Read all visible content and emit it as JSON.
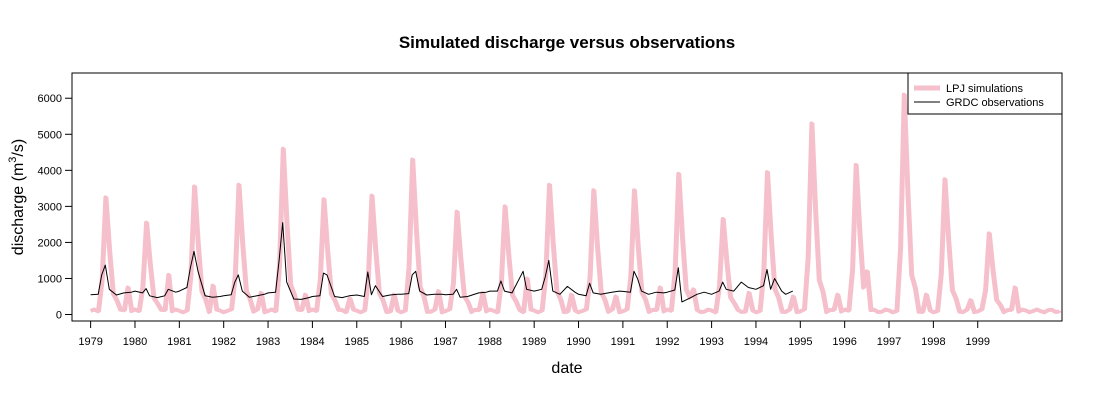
{
  "chart_data": {
    "type": "line",
    "title": "Simulated discharge versus observations",
    "xlabel": "date",
    "ylabel": "discharge (m3/s)",
    "ylabel_parts": {
      "before": "discharge (m",
      "superscript": "3",
      "after": "/s)"
    },
    "x_tick_labels": [
      "1979",
      "1980",
      "1981",
      "1982",
      "1983",
      "1984",
      "1985",
      "1986",
      "1987",
      "1988",
      "1989",
      "1990",
      "1991",
      "1992",
      "1993",
      "1994",
      "1995",
      "1996",
      "1997",
      "1998",
      "1999"
    ],
    "y_tick_labels": [
      "0",
      "1000",
      "2000",
      "3000",
      "4000",
      "5000",
      "6000"
    ],
    "xlim": [
      1978.58,
      2000.9
    ],
    "ylim": [
      -180,
      6700
    ],
    "grid": false,
    "legend_position": "top-right",
    "legend": [
      "LPJ simulations",
      "GRDC observations"
    ],
    "series": [
      {
        "name": "LPJ simulations",
        "color": "#f5c0cb",
        "style": "thick band",
        "peaks": [
          {
            "t": 1979.33,
            "v": 3250
          },
          {
            "t": 1980.25,
            "v": 2550
          },
          {
            "t": 1981.33,
            "v": 3550
          },
          {
            "t": 1982.33,
            "v": 3600
          },
          {
            "t": 1983.33,
            "v": 4600
          },
          {
            "t": 1984.25,
            "v": 3200
          },
          {
            "t": 1985.33,
            "v": 3300
          },
          {
            "t": 1986.25,
            "v": 4300
          },
          {
            "t": 1987.25,
            "v": 2850
          },
          {
            "t": 1988.33,
            "v": 3000
          },
          {
            "t": 1989.33,
            "v": 3600
          },
          {
            "t": 1990.33,
            "v": 3450
          },
          {
            "t": 1991.25,
            "v": 3450
          },
          {
            "t": 1992.25,
            "v": 3900
          },
          {
            "t": 1993.25,
            "v": 2650
          },
          {
            "t": 1994.25,
            "v": 3950
          },
          {
            "t": 1995.25,
            "v": 5300
          },
          {
            "t": 1996.25,
            "v": 4150
          },
          {
            "t": 1997.33,
            "v": 6100
          },
          {
            "t": 1998.25,
            "v": 3750
          },
          {
            "t": 1999.25,
            "v": 2250
          }
        ],
        "secondary_peaks": [
          {
            "t": 1979.85,
            "v": 750
          },
          {
            "t": 1980.75,
            "v": 1100
          },
          {
            "t": 1981.75,
            "v": 800
          },
          {
            "t": 1982.8,
            "v": 600
          },
          {
            "t": 1983.8,
            "v": 550
          },
          {
            "t": 1984.8,
            "v": 450
          },
          {
            "t": 1985.8,
            "v": 550
          },
          {
            "t": 1986.8,
            "v": 650
          },
          {
            "t": 1987.8,
            "v": 600
          },
          {
            "t": 1988.8,
            "v": 1000
          },
          {
            "t": 1989.8,
            "v": 550
          },
          {
            "t": 1990.8,
            "v": 500
          },
          {
            "t": 1991.8,
            "v": 750
          },
          {
            "t": 1992.6,
            "v": 700
          },
          {
            "t": 1993.8,
            "v": 600
          },
          {
            "t": 1994.8,
            "v": 500
          },
          {
            "t": 1995.8,
            "v": 550
          },
          {
            "t": 1996.5,
            "v": 1200
          },
          {
            "t": 1997.8,
            "v": 550
          },
          {
            "t": 1998.8,
            "v": 400
          },
          {
            "t": 1999.8,
            "v": 750
          }
        ],
        "base": 100,
        "end": 2000.85
      },
      {
        "name": "GRDC observations",
        "color": "#000000",
        "style": "thin line",
        "points": [
          [
            1979.0,
            550
          ],
          [
            1979.17,
            560
          ],
          [
            1979.25,
            1100
          ],
          [
            1979.33,
            1370
          ],
          [
            1979.42,
            700
          ],
          [
            1979.58,
            540
          ],
          [
            1979.75,
            600
          ],
          [
            1979.92,
            620
          ],
          [
            1980.0,
            650
          ],
          [
            1980.17,
            600
          ],
          [
            1980.25,
            720
          ],
          [
            1980.33,
            520
          ],
          [
            1980.5,
            470
          ],
          [
            1980.67,
            520
          ],
          [
            1980.75,
            700
          ],
          [
            1980.92,
            620
          ],
          [
            1981.0,
            650
          ],
          [
            1981.17,
            750
          ],
          [
            1981.25,
            1300
          ],
          [
            1981.33,
            1750
          ],
          [
            1981.42,
            1200
          ],
          [
            1981.58,
            520
          ],
          [
            1981.75,
            480
          ],
          [
            1981.92,
            500
          ],
          [
            1982.0,
            520
          ],
          [
            1982.17,
            550
          ],
          [
            1982.25,
            900
          ],
          [
            1982.33,
            1100
          ],
          [
            1982.42,
            650
          ],
          [
            1982.58,
            480
          ],
          [
            1982.75,
            520
          ],
          [
            1982.92,
            560
          ],
          [
            1983.0,
            600
          ],
          [
            1983.17,
            620
          ],
          [
            1983.25,
            1500
          ],
          [
            1983.33,
            2550
          ],
          [
            1983.42,
            900
          ],
          [
            1983.58,
            430
          ],
          [
            1983.75,
            420
          ],
          [
            1983.92,
            470
          ],
          [
            1984.0,
            500
          ],
          [
            1984.17,
            520
          ],
          [
            1984.25,
            1150
          ],
          [
            1984.33,
            1100
          ],
          [
            1984.5,
            500
          ],
          [
            1984.67,
            470
          ],
          [
            1984.83,
            520
          ],
          [
            1985.0,
            540
          ],
          [
            1985.17,
            500
          ],
          [
            1985.25,
            1180
          ],
          [
            1985.33,
            550
          ],
          [
            1985.42,
            800
          ],
          [
            1985.58,
            500
          ],
          [
            1985.75,
            540
          ],
          [
            1985.92,
            560
          ],
          [
            1986.0,
            560
          ],
          [
            1986.17,
            580
          ],
          [
            1986.25,
            1100
          ],
          [
            1986.33,
            1200
          ],
          [
            1986.42,
            650
          ],
          [
            1986.58,
            540
          ],
          [
            1986.75,
            560
          ],
          [
            1986.92,
            560
          ],
          [
            1987.0,
            550
          ],
          [
            1987.17,
            560
          ],
          [
            1987.25,
            700
          ],
          [
            1987.33,
            480
          ],
          [
            1987.5,
            500
          ],
          [
            1987.75,
            600
          ],
          [
            1987.92,
            620
          ],
          [
            1988.0,
            650
          ],
          [
            1988.17,
            650
          ],
          [
            1988.25,
            930
          ],
          [
            1988.33,
            650
          ],
          [
            1988.5,
            600
          ],
          [
            1988.75,
            1200
          ],
          [
            1988.83,
            700
          ],
          [
            1989.0,
            650
          ],
          [
            1989.17,
            700
          ],
          [
            1989.25,
            1050
          ],
          [
            1989.33,
            1500
          ],
          [
            1989.42,
            650
          ],
          [
            1989.58,
            560
          ],
          [
            1989.75,
            780
          ],
          [
            1989.92,
            620
          ],
          [
            1990.0,
            560
          ],
          [
            1990.17,
            520
          ],
          [
            1990.25,
            870
          ],
          [
            1990.33,
            600
          ],
          [
            1990.5,
            560
          ],
          [
            1990.75,
            620
          ],
          [
            1990.92,
            650
          ],
          [
            1991.0,
            640
          ],
          [
            1991.17,
            620
          ],
          [
            1991.25,
            1200
          ],
          [
            1991.33,
            1000
          ],
          [
            1991.42,
            650
          ],
          [
            1991.58,
            560
          ],
          [
            1991.75,
            620
          ],
          [
            1991.92,
            600
          ],
          [
            1992.0,
            620
          ],
          [
            1992.17,
            680
          ],
          [
            1992.25,
            1300
          ],
          [
            1992.33,
            350
          ],
          [
            1992.5,
            450
          ],
          [
            1992.67,
            560
          ],
          [
            1992.83,
            620
          ],
          [
            1993.0,
            560
          ],
          [
            1993.17,
            650
          ],
          [
            1993.25,
            900
          ],
          [
            1993.33,
            700
          ],
          [
            1993.5,
            650
          ],
          [
            1993.67,
            900
          ],
          [
            1993.83,
            750
          ],
          [
            1994.0,
            700
          ],
          [
            1994.17,
            800
          ],
          [
            1994.25,
            1250
          ],
          [
            1994.33,
            700
          ],
          [
            1994.42,
            1000
          ],
          [
            1994.58,
            650
          ],
          [
            1994.67,
            560
          ],
          [
            1994.83,
            650
          ]
        ]
      }
    ]
  }
}
